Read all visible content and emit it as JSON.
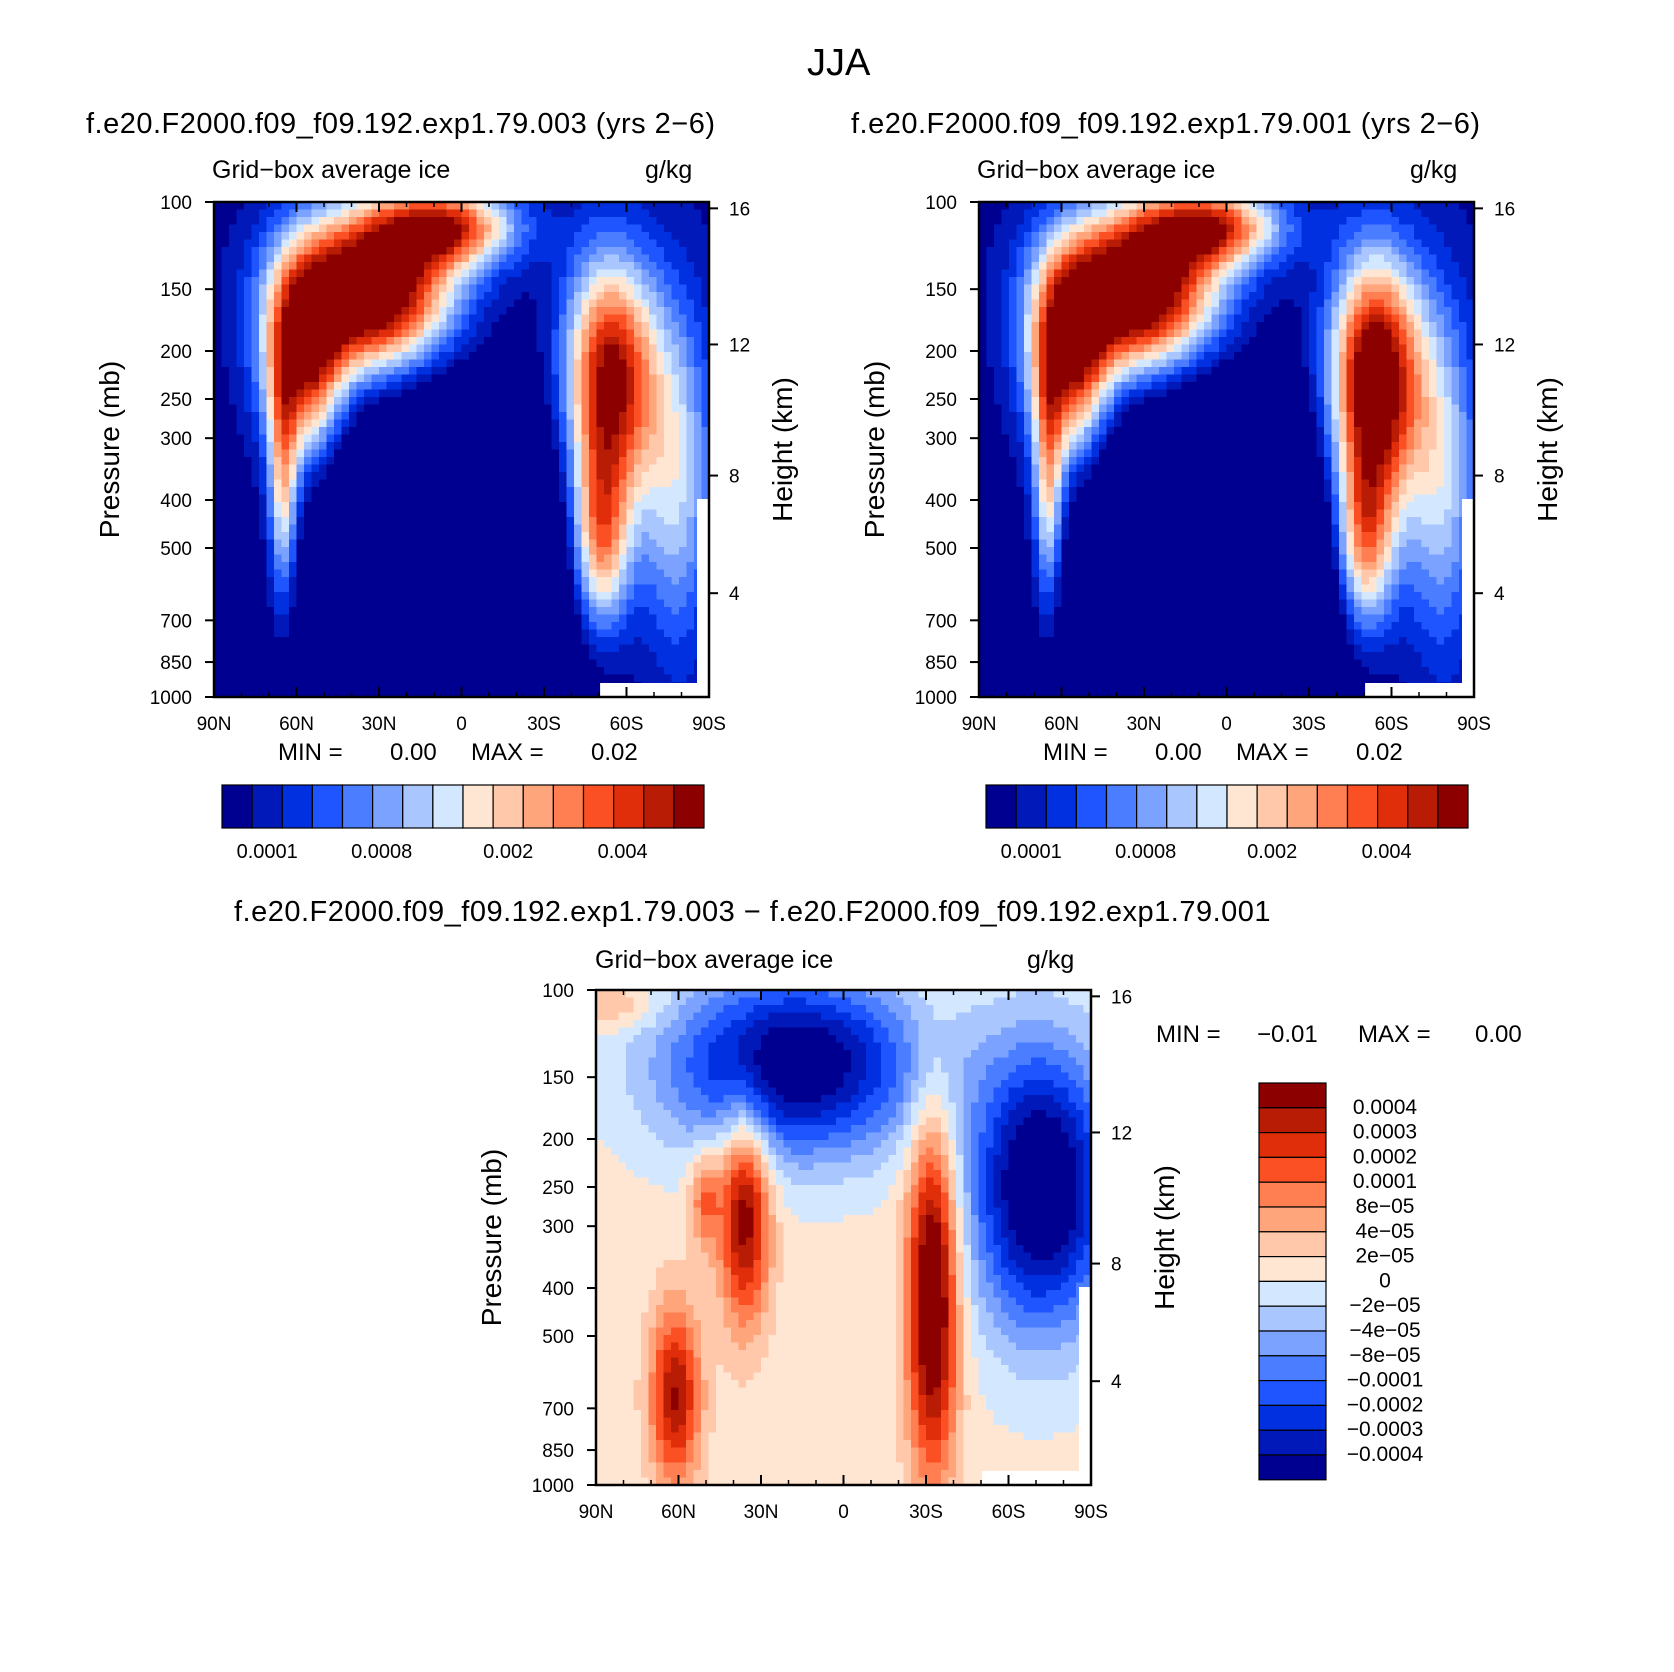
{
  "figure": {
    "title": "JJA"
  },
  "panels": [
    {
      "id": "test",
      "title": "f.e20.F2000.f09_f09.192.exp1.79.003 (yrs 2−6)",
      "left_label": "Grid−box average ice",
      "right_label": "g/kg",
      "ylabel": "Pressure (mb)",
      "ylabel_right": "Height (km)",
      "min_text": "MIN =",
      "min_value": "0.00",
      "max_text": "MAX =",
      "max_value": "0.02"
    },
    {
      "id": "control",
      "title": "f.e20.F2000.f09_f09.192.exp1.79.001 (yrs 2−6)",
      "left_label": "Grid−box average ice",
      "right_label": "g/kg",
      "ylabel": "Pressure (mb)",
      "ylabel_right": "Height (km)",
      "min_text": "MIN =",
      "min_value": "0.00",
      "max_text": "MAX =",
      "max_value": "0.02"
    },
    {
      "id": "difference",
      "title": "f.e20.F2000.f09_f09.192.exp1.79.003 − f.e20.F2000.f09_f09.192.exp1.79.001",
      "left_label": "Grid−box average ice",
      "right_label": "g/kg",
      "ylabel": "Pressure (mb)",
      "ylabel_right": "Height (km)",
      "min_text": "MIN =",
      "min_value": "−0.01",
      "max_text": "MAX =",
      "max_value": "0.00"
    }
  ],
  "chart_data": [
    {
      "type": "heatmap",
      "panel": "test",
      "x_ticks": [
        "90N",
        "60N",
        "30N",
        "0",
        "30S",
        "60S",
        "90S"
      ],
      "y_ticks": [
        "100",
        "150",
        "200",
        "250",
        "300",
        "400",
        "500",
        "700",
        "850",
        "1000"
      ],
      "y_right_ticks": [
        "16",
        "12",
        "8",
        "4"
      ],
      "ylim": [
        1000,
        100
      ],
      "colorbar_labels": [
        "0.0001",
        "0.0008",
        "0.002",
        "0.004"
      ],
      "colors": [
        "#000090",
        "#0019b8",
        "#0030e0",
        "#1e55ff",
        "#4a7dff",
        "#7ca2ff",
        "#aac6ff",
        "#d3e8ff",
        "#ffe6d2",
        "#ffc8aa",
        "#ffa57c",
        "#ff7e52",
        "#fa5024",
        "#e02e0a",
        "#b81c04",
        "#8c0000"
      ]
    },
    {
      "type": "heatmap",
      "panel": "control",
      "x_ticks": [
        "90N",
        "60N",
        "30N",
        "0",
        "30S",
        "60S",
        "90S"
      ],
      "y_ticks": [
        "100",
        "150",
        "200",
        "250",
        "300",
        "400",
        "500",
        "700",
        "850",
        "1000"
      ],
      "y_right_ticks": [
        "16",
        "12",
        "8",
        "4"
      ],
      "ylim": [
        1000,
        100
      ],
      "colorbar_labels": [
        "0.0001",
        "0.0008",
        "0.002",
        "0.004"
      ],
      "colors": [
        "#000090",
        "#0019b8",
        "#0030e0",
        "#1e55ff",
        "#4a7dff",
        "#7ca2ff",
        "#aac6ff",
        "#d3e8ff",
        "#ffe6d2",
        "#ffc8aa",
        "#ffa57c",
        "#ff7e52",
        "#fa5024",
        "#e02e0a",
        "#b81c04",
        "#8c0000"
      ]
    },
    {
      "type": "heatmap",
      "panel": "difference",
      "x_ticks": [
        "90N",
        "60N",
        "30N",
        "0",
        "30S",
        "60S",
        "90S"
      ],
      "y_ticks": [
        "100",
        "150",
        "200",
        "250",
        "300",
        "400",
        "500",
        "700",
        "850",
        "1000"
      ],
      "y_right_ticks": [
        "16",
        "12",
        "8",
        "4"
      ],
      "ylim": [
        1000,
        100
      ],
      "colorbar_labels": [
        "0.0004",
        "0.0003",
        "0.0002",
        "0.0001",
        "8e−05",
        "4e−05",
        "2e−05",
        "0",
        "−2e−05",
        "−4e−05",
        "−8e−05",
        "−0.0001",
        "−0.0002",
        "−0.0003",
        "−0.0004"
      ],
      "colors": [
        "#8c0000",
        "#b81c04",
        "#e02e0a",
        "#fa5024",
        "#ff7e52",
        "#ffa57c",
        "#ffc8aa",
        "#ffe6d2",
        "#d3e8ff",
        "#aac6ff",
        "#7ca2ff",
        "#4a7dff",
        "#1e55ff",
        "#0030e0",
        "#0019b8",
        "#000090"
      ]
    }
  ]
}
